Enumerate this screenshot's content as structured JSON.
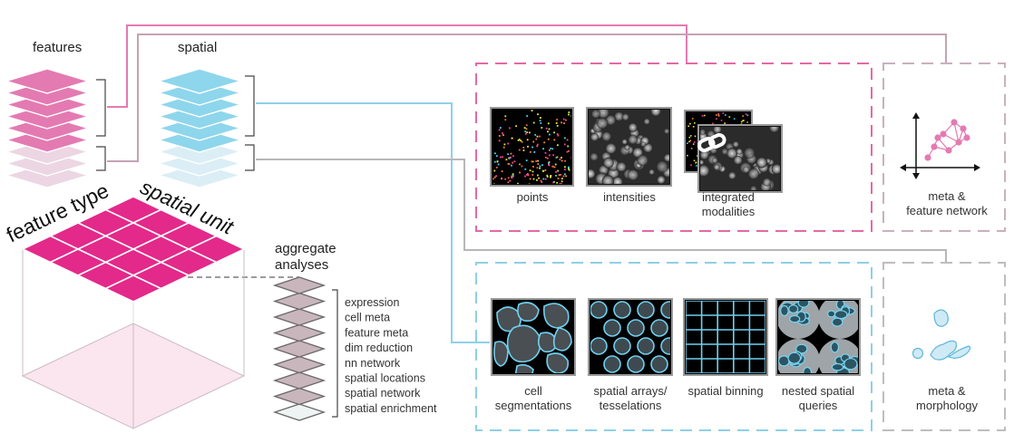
{
  "colors": {
    "pink": "#e3298a",
    "pink_light": "#e47ab2",
    "blue": "#8ed6ec",
    "blue_line": "#7fc8e3",
    "grey": "#b7b2b6",
    "mauve": "#c9b6bd"
  },
  "left": {
    "features_label": "features",
    "spatial_label": "spatial",
    "feature_type_label": "feature type",
    "spatial_unit_label": "spatial unit",
    "aggregate_label_line1": "aggregate",
    "aggregate_label_line2": "analyses",
    "aggregate_items": [
      "expression",
      "cell meta",
      "feature meta",
      "dim reduction",
      "nn network",
      "spatial locations",
      "spatial network",
      "spatial enrichment"
    ]
  },
  "top_panel": {
    "items": [
      {
        "name": "points",
        "label_lines": [
          "points"
        ]
      },
      {
        "name": "intensities",
        "label_lines": [
          "intensities"
        ]
      },
      {
        "name": "integrated-modalities",
        "label_lines": [
          "integrated",
          "modalities"
        ]
      }
    ],
    "side_label_lines": [
      "meta &",
      "feature network"
    ]
  },
  "bottom_panel": {
    "items": [
      {
        "name": "cell-segmentations",
        "label_lines": [
          "cell",
          "segmentations"
        ]
      },
      {
        "name": "spatial-arrays",
        "label_lines": [
          "spatial arrays/",
          "tesselations"
        ]
      },
      {
        "name": "spatial-binning",
        "label_lines": [
          "spatial binning"
        ]
      },
      {
        "name": "nested-spatial-queries",
        "label_lines": [
          "nested spatial",
          "queries"
        ]
      }
    ],
    "side_label_lines": [
      "meta &",
      "morphology"
    ]
  }
}
